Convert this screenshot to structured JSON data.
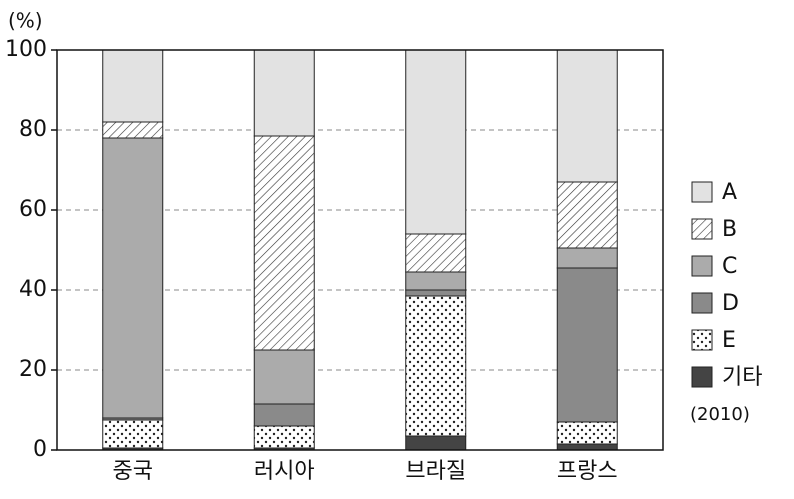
{
  "chart_data": {
    "type": "stacked-bar",
    "y_label": "(%)",
    "note": "(2010)",
    "categories": [
      "중국",
      "러시아",
      "브라질",
      "프랑스"
    ],
    "series": [
      {
        "name": "기타",
        "color": "#444444",
        "values": [
          0.5,
          0.5,
          3.5,
          1.5
        ]
      },
      {
        "name": "E",
        "color": "#ffffff",
        "pattern": "dots",
        "values": [
          7,
          5.5,
          35,
          5.5
        ]
      },
      {
        "name": "D",
        "color": "#8a8a8a",
        "values": [
          0.5,
          5.5,
          1.5,
          38.5
        ]
      },
      {
        "name": "C",
        "color": "#ababab",
        "values": [
          70,
          13.5,
          4.5,
          5
        ]
      },
      {
        "name": "B",
        "color": "#ffffff",
        "pattern": "hatch",
        "values": [
          4,
          53.5,
          9.5,
          16.5
        ]
      },
      {
        "name": "A",
        "color": "#e2e2e2",
        "values": [
          18,
          21.5,
          46,
          33
        ]
      }
    ],
    "ylim": [
      0,
      100
    ],
    "yticks": [
      0,
      20,
      40,
      60,
      80,
      100
    ],
    "grid": true
  }
}
